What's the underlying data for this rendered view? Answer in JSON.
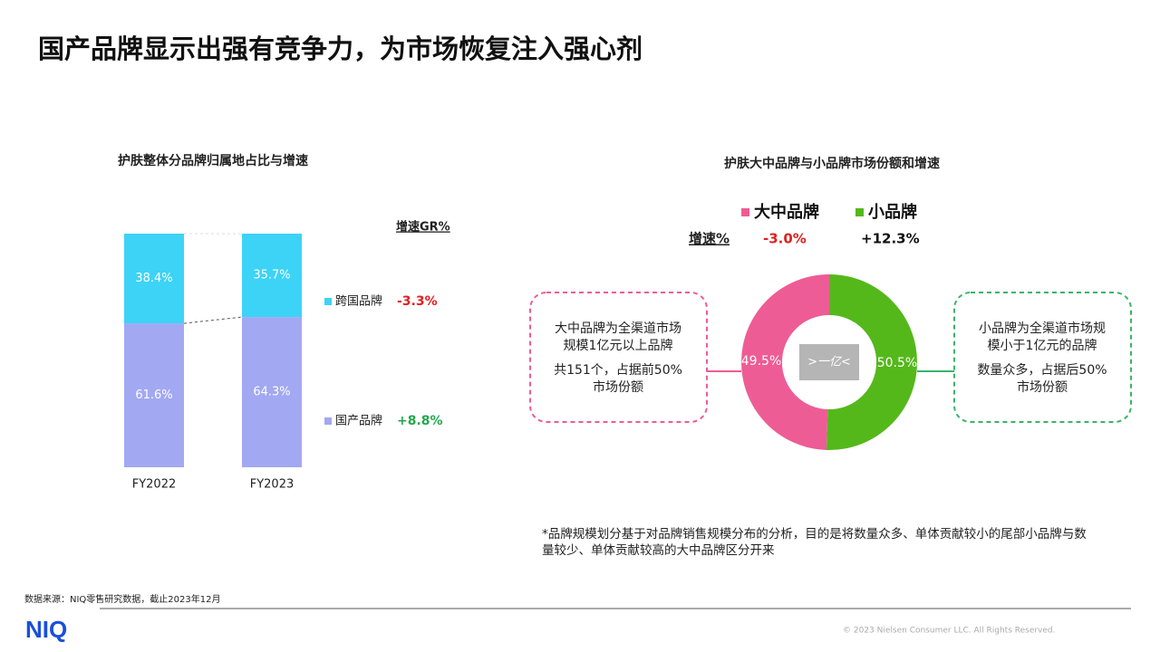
{
  "title": "国产品牌显示出强有竞争力，为市场恢复注入强心剂",
  "chart_data": [
    {
      "type": "stacked_bar",
      "title": "护肤整体分品牌归属地占比与增速",
      "categories": [
        "FY2022",
        "FY2023"
      ],
      "series": [
        {
          "name": "国产品牌",
          "color": "#a3a8f2",
          "values": [
            61.6,
            64.3
          ],
          "value_labels": [
            "61.6%",
            "64.3%"
          ],
          "growth_label": "+8.8%"
        },
        {
          "name": "跨国品牌",
          "color": "#3dd3f6",
          "values": [
            38.4,
            35.7
          ],
          "value_labels": [
            "38.4%",
            "35.7%"
          ],
          "growth_label": "-3.3%"
        }
      ],
      "growth_header": "增速GR%",
      "ylim": [
        0,
        100
      ]
    },
    {
      "type": "donut",
      "title": "护肤大中品牌与小品牌市场份额和增速",
      "categories": [
        "大中品牌",
        "小品牌"
      ],
      "values": [
        49.5,
        50.5
      ],
      "value_labels": [
        "49.5%",
        "50.5%"
      ],
      "colors": [
        "#ee5c95",
        "#54b81b"
      ],
      "growth_header": "增速%",
      "growth_labels": [
        "-3.0%",
        "+12.3%"
      ],
      "center_label": ">一亿<",
      "annotations": [
        {
          "lines": [
            "大中品牌为全渠道市场",
            "规模1亿元以上品牌"
          ],
          "lines2": [
            "共151个，占据前50%",
            "市场份额"
          ]
        },
        {
          "lines": [
            "小品牌为全渠道市场规",
            "模小于1亿元的品牌"
          ],
          "lines2": [
            "数量众多，占据后50%",
            "市场份额"
          ]
        }
      ]
    }
  ],
  "footnote": [
    "*品牌规模划分基于对品牌销售规模分布的分析，目的是将数量众多、单体贡献较小的尾部小品牌与数",
    "量较少、单体贡献较高的大中品牌区分开来"
  ],
  "source": "数据来源：NIQ零售研究数据，截止2023年12月",
  "logo": "NIQ",
  "copyright": "© 2023 Nielsen Consumer LLC. All Rights Reserved."
}
